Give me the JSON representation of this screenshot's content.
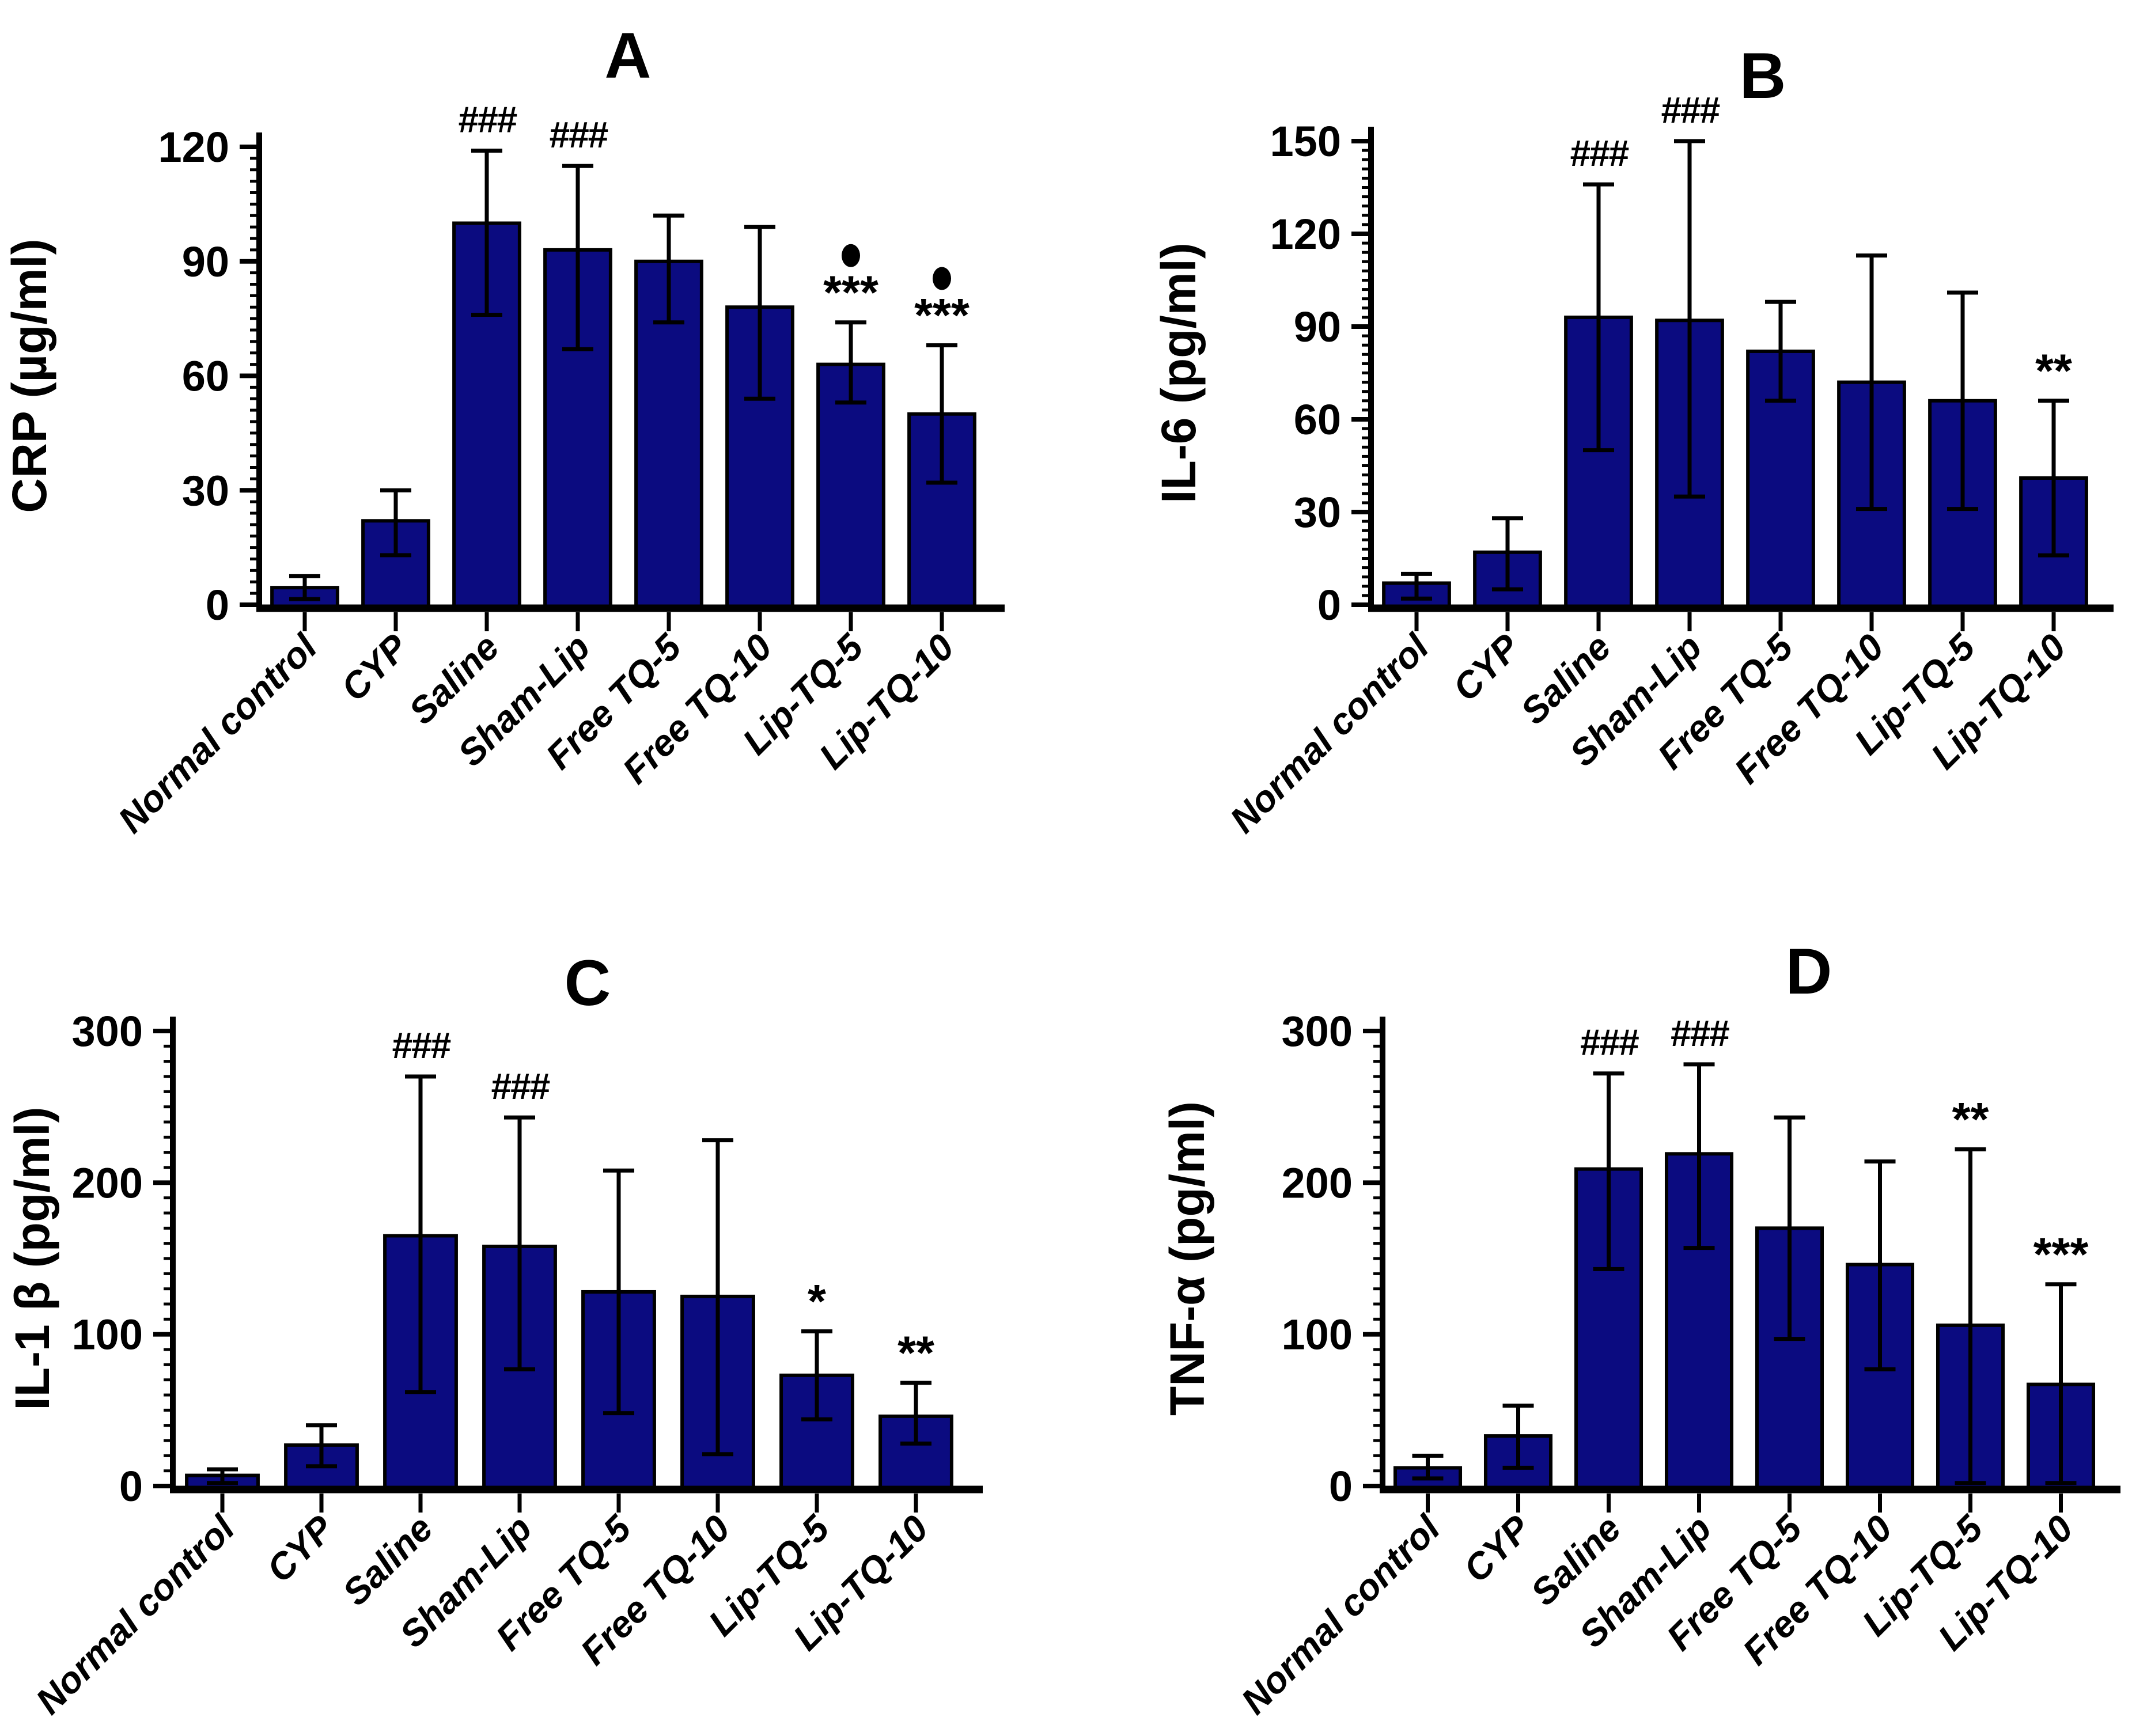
{
  "figure": {
    "background": "#ffffff",
    "panel_letters": [
      "A",
      "B",
      "C",
      "D"
    ],
    "annotation_symbols": {
      "hash_triple": "###",
      "star": "*",
      "dot": "filled-circle"
    }
  },
  "colors": {
    "bar_fill": "#0b0b80",
    "bar_stroke": "#000000",
    "axis": "#000000",
    "error_bar": "#000000",
    "annotation": "#000000"
  },
  "chart_data": [
    {
      "type": "bar",
      "panel": "A",
      "title": "A",
      "xlabel": "",
      "ylabel": "CRP (µg/ml)",
      "ylim": [
        0,
        120
      ],
      "yticks": [
        0,
        30,
        60,
        90,
        120
      ],
      "minor_step": 3,
      "grid": false,
      "legend": null,
      "categories": [
        "Normal control",
        "CYP",
        "Saline",
        "Sham-Lip",
        "Free TQ-5",
        "Free TQ-10",
        "Lip-TQ-5",
        "Lip-TQ-10"
      ],
      "values": [
        4.5,
        22,
        100,
        93,
        90,
        78,
        63,
        50
      ],
      "err_up": [
        3,
        8,
        19,
        22,
        12,
        21,
        11,
        18
      ],
      "err_down": [
        3,
        9,
        24,
        26,
        16,
        24,
        10,
        18
      ],
      "sig": [
        "",
        "",
        "###",
        "###",
        "",
        "",
        "***",
        "***"
      ],
      "dot": [
        false,
        false,
        false,
        false,
        false,
        false,
        true,
        true
      ]
    },
    {
      "type": "bar",
      "panel": "B",
      "title": "B",
      "xlabel": "",
      "ylabel": "IL-6 (pg/ml)",
      "ylim": [
        0,
        150
      ],
      "yticks": [
        0,
        30,
        60,
        90,
        120,
        150
      ],
      "minor_step": 3,
      "grid": false,
      "legend": null,
      "categories": [
        "Normal control",
        "CYP",
        "Saline",
        "Sham-Lip",
        "Free TQ-5",
        "Free TQ-10",
        "Lip-TQ-5",
        "Lip-TQ-10"
      ],
      "values": [
        7,
        17,
        93,
        92,
        82,
        72,
        66,
        41
      ],
      "err_up": [
        3,
        11,
        43,
        58,
        16,
        41,
        35,
        25
      ],
      "err_down": [
        5,
        12,
        43,
        57,
        16,
        41,
        35,
        25
      ],
      "sig": [
        "",
        "",
        "###",
        "###",
        "",
        "",
        "",
        "**"
      ],
      "dot": [
        false,
        false,
        false,
        false,
        false,
        false,
        false,
        false
      ]
    },
    {
      "type": "bar",
      "panel": "C",
      "title": "C",
      "xlabel": "",
      "ylabel": "IL-1 β (pg/ml)",
      "ylim": [
        0,
        300
      ],
      "yticks": [
        0,
        100,
        200,
        300
      ],
      "minor_step": 10,
      "grid": false,
      "legend": null,
      "categories": [
        "Normal control",
        "CYP",
        "Saline",
        "Sham-Lip",
        "Free TQ-5",
        "Free TQ-10",
        "Lip-TQ-5",
        "Lip-TQ-10"
      ],
      "values": [
        7,
        27,
        165,
        158,
        128,
        125,
        73,
        46
      ],
      "err_up": [
        4,
        13,
        105,
        85,
        80,
        103,
        29,
        22
      ],
      "err_down": [
        5,
        14,
        103,
        81,
        80,
        104,
        29,
        18
      ],
      "sig": [
        "",
        "",
        "###",
        "###",
        "",
        "",
        "*",
        "**"
      ],
      "dot": [
        false,
        false,
        false,
        false,
        false,
        false,
        false,
        false
      ]
    },
    {
      "type": "bar",
      "panel": "D",
      "title": "D",
      "xlabel": "",
      "ylabel": "TNF-α (pg/ml)",
      "ylim": [
        0,
        300
      ],
      "yticks": [
        0,
        100,
        200,
        300
      ],
      "minor_step": 10,
      "grid": false,
      "legend": null,
      "categories": [
        "Normal control",
        "CYP",
        "Saline",
        "Sham-Lip",
        "Free TQ-5",
        "Free TQ-10",
        "Lip-TQ-5",
        "Lip-TQ-10"
      ],
      "values": [
        12,
        33,
        209,
        219,
        170,
        146,
        106,
        67
      ],
      "err_up": [
        8,
        20,
        63,
        59,
        73,
        68,
        116,
        66
      ],
      "err_down": [
        7,
        21,
        66,
        62,
        73,
        69,
        104,
        65
      ],
      "sig": [
        "",
        "",
        "###",
        "###",
        "",
        "",
        "**",
        "***"
      ],
      "dot": [
        false,
        false,
        false,
        false,
        false,
        false,
        false,
        false
      ]
    }
  ]
}
